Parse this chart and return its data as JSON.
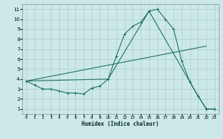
{
  "xlabel": "Humidex (Indice chaleur)",
  "xlim": [
    -0.5,
    23.5
  ],
  "ylim": [
    0.5,
    11.5
  ],
  "xticks": [
    0,
    1,
    2,
    3,
    4,
    5,
    6,
    7,
    8,
    9,
    10,
    11,
    12,
    13,
    14,
    15,
    16,
    17,
    18,
    19,
    20,
    21,
    22,
    23
  ],
  "yticks": [
    1,
    2,
    3,
    4,
    5,
    6,
    7,
    8,
    9,
    10,
    11
  ],
  "bg_color": "#cce8e8",
  "grid_color": "#aacccc",
  "line_color": "#1a6e60",
  "line1_x": [
    0,
    1,
    2,
    3,
    4,
    5,
    6,
    7,
    8,
    9,
    10,
    11,
    12,
    13,
    14,
    15,
    16,
    17,
    18,
    19,
    20,
    21,
    22,
    23
  ],
  "line1_y": [
    3.8,
    3.4,
    3.0,
    3.0,
    2.8,
    2.6,
    2.6,
    2.5,
    3.1,
    3.3,
    4.0,
    6.3,
    8.5,
    9.3,
    9.7,
    10.8,
    11.0,
    10.0,
    9.0,
    5.8,
    3.7,
    2.3,
    1.0,
    1.0
  ],
  "line2_x": [
    0,
    10,
    15,
    20,
    21,
    22,
    23
  ],
  "line2_y": [
    3.8,
    4.0,
    10.8,
    3.7,
    2.3,
    1.0,
    1.0
  ],
  "line3_x": [
    0,
    22
  ],
  "line3_y": [
    3.8,
    7.3
  ]
}
